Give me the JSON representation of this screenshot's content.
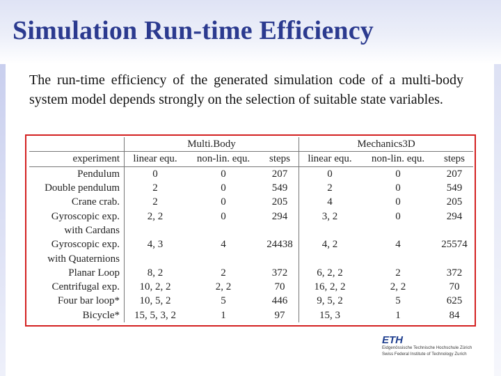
{
  "title": "Simulation Run-time Efficiency",
  "body_text": "The run-time efficiency of the generated simulation code of a multi-body system model depends strongly on the selection of suitable state variables.",
  "table": {
    "groups": [
      "Multi.Body",
      "Mechanics3D"
    ],
    "headers": [
      "experiment",
      "linear equ.",
      "non-lin. equ.",
      "steps",
      "linear equ.",
      "non-lin. equ.",
      "steps"
    ],
    "rows": [
      [
        "Pendulum",
        "0",
        "0",
        "207",
        "0",
        "0",
        "207"
      ],
      [
        "Double pendulum",
        "2",
        "0",
        "549",
        "2",
        "0",
        "549"
      ],
      [
        "Crane crab.",
        "2",
        "0",
        "205",
        "4",
        "0",
        "205"
      ],
      [
        "Gyroscopic exp.",
        "2, 2",
        "0",
        "294",
        "3, 2",
        "0",
        "294"
      ],
      [
        "with Cardans",
        "",
        "",
        "",
        "",
        "",
        ""
      ],
      [
        "Gyroscopic exp.",
        "4, 3",
        "4",
        "24438",
        "4, 2",
        "4",
        "25574"
      ],
      [
        "with Quaternions",
        "",
        "",
        "",
        "",
        "",
        ""
      ],
      [
        "Planar Loop",
        "8, 2",
        "2",
        "372",
        "6, 2, 2",
        "2",
        "372"
      ],
      [
        "Centrifugal exp.",
        "10, 2, 2",
        "2, 2",
        "70",
        "16, 2, 2",
        "2, 2",
        "70"
      ],
      [
        "Four bar loop*",
        "10, 5, 2",
        "5",
        "446",
        "9, 5, 2",
        "5",
        "625"
      ],
      [
        "Bicycle*",
        "15, 5, 3, 2",
        "1",
        "97",
        "15, 3",
        "1",
        "84"
      ]
    ]
  },
  "logo": {
    "text": "ETH",
    "line1": "Eidgenössische Technische Hochschule Zürich",
    "line2": "Swiss Federal Institute of Technology Zurich",
    "color": "#1f3f8f"
  },
  "colors": {
    "title": "#2b3a8f",
    "table_border": "#d32020"
  }
}
